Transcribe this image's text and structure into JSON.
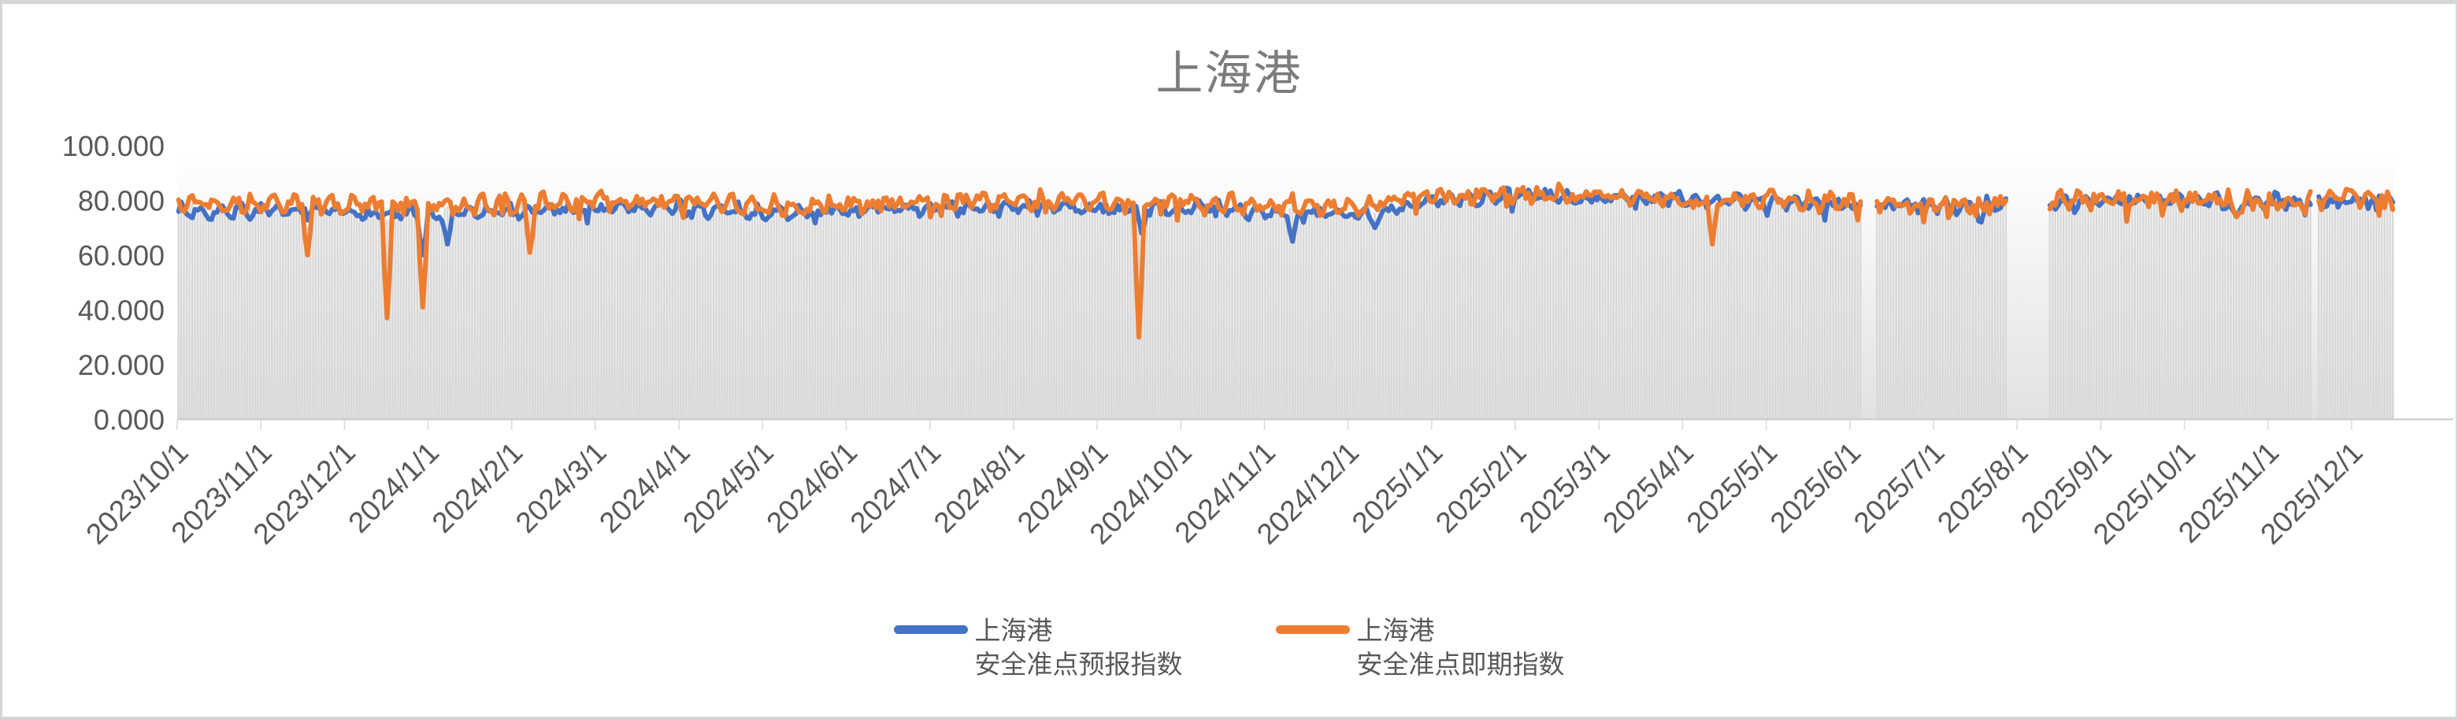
{
  "title": "上海港",
  "colors": {
    "series_forecast": "#4472C4",
    "series_spot": "#ED7D31",
    "background_bars": "#D8D8D8",
    "axis_line": "#C9C9C9",
    "tick_mark": "#D9D9D9",
    "axis_label": "#595959",
    "title_text": "#7C7C7C",
    "plot_bg_top": "#FFFFFF",
    "plot_bg_bottom": "#E2E2E2",
    "frame_border": "#D6D6D6"
  },
  "legend": {
    "forecast": {
      "line1": "上海港",
      "line2": "安全准点预报指数"
    },
    "spot": {
      "line1": "上海港",
      "line2": "安全准点即期指数"
    }
  },
  "chart_data": {
    "type": "line",
    "title": "上海港",
    "xlabel": "",
    "ylabel": "",
    "ylim": [
      0,
      100
    ],
    "y_ticks": [
      0,
      20,
      40,
      60,
      80,
      100
    ],
    "y_tick_labels": [
      "0.000",
      "20.000",
      "40.000",
      "60.000",
      "80.000",
      "100.000"
    ],
    "x_start": "2023/10/1",
    "x_end": "2025/12/16",
    "x_tick_interval": "1 month",
    "x_tick_labels": [
      "2023/10/1",
      "2023/11/1",
      "2023/12/1",
      "2024/1/1",
      "2024/2/1",
      "2024/3/1",
      "2024/4/1",
      "2024/5/1",
      "2024/6/1",
      "2024/7/1",
      "2024/8/1",
      "2024/9/1",
      "2024/10/1",
      "2024/11/1",
      "2024/12/1",
      "2025/1/1",
      "2025/2/1",
      "2025/3/1",
      "2025/4/1",
      "2025/5/1",
      "2025/6/1",
      "2025/7/1",
      "2025/8/1",
      "2025/9/1",
      "2025/10/1",
      "2025/11/1",
      "2025/12/1"
    ],
    "grid": false,
    "legend_position": "bottom",
    "data_gaps": [
      [
        "2025/6/6",
        "2025/6/10"
      ],
      [
        "2025/7/29",
        "2025/8/12"
      ],
      [
        "2025/11/17",
        "2025/11/18"
      ]
    ],
    "background_bars": {
      "present": true,
      "color": "#D8D8D8",
      "description": "thin daily drop-line columns from 0 up to the lower line envelope (deep one-day dips excluded)"
    },
    "series": [
      {
        "name": "上海港 安全准点预报指数",
        "color": "#4472C4",
        "monthly_anchor_means": [
          76,
          76,
          75.5,
          74.5,
          76,
          77.5,
          77,
          75.5,
          76,
          77,
          77.5,
          77,
          77.5,
          76,
          74.5,
          80,
          81.5,
          81,
          80.5,
          80,
          78.5,
          78,
          78.5,
          80,
          80.5,
          79.5,
          80.5,
          80.5
        ],
        "dips": [
          [
            "2023/12/29",
            60,
            2
          ],
          [
            "2024/1/7",
            64,
            2
          ],
          [
            "2024/9/16",
            68,
            2
          ],
          [
            "2024/11/10",
            65,
            2
          ],
          [
            "2024/12/10",
            70,
            3
          ],
          [
            "2025/7/19",
            72,
            2
          ],
          [
            "2025/10/20",
            74,
            3
          ]
        ],
        "noise_amp": 1.7,
        "weekly_amp": 1.1,
        "spike_prob": 0.05,
        "spike_depth": 4.5,
        "seed": 7,
        "phase": 0.7
      },
      {
        "name": "上海港 安全准点即期指数",
        "color": "#ED7D31",
        "monthly_anchor_means": [
          79.5,
          79,
          78.5,
          78.5,
          78.5,
          80,
          79.5,
          78,
          78.5,
          79.5,
          80,
          79.5,
          79.5,
          78.5,
          77.5,
          81.5,
          82.5,
          81.5,
          81,
          80.5,
          79,
          78.5,
          79,
          80.5,
          81,
          80,
          81,
          81
        ],
        "dips": [
          [
            "2023/11/17",
            60,
            2
          ],
          [
            "2023/12/16",
            37,
            2
          ],
          [
            "2023/12/29",
            41,
            2
          ],
          [
            "2024/2/6",
            61,
            2
          ],
          [
            "2024/9/15",
            30,
            2
          ],
          [
            "2025/4/12",
            64,
            2
          ],
          [
            "2025/10/20",
            74,
            3
          ]
        ],
        "noise_amp": 2.3,
        "weekly_amp": 1.4,
        "spike_prob": 0.07,
        "spike_depth": 6,
        "seed": 13,
        "phase": 2.1
      }
    ]
  }
}
